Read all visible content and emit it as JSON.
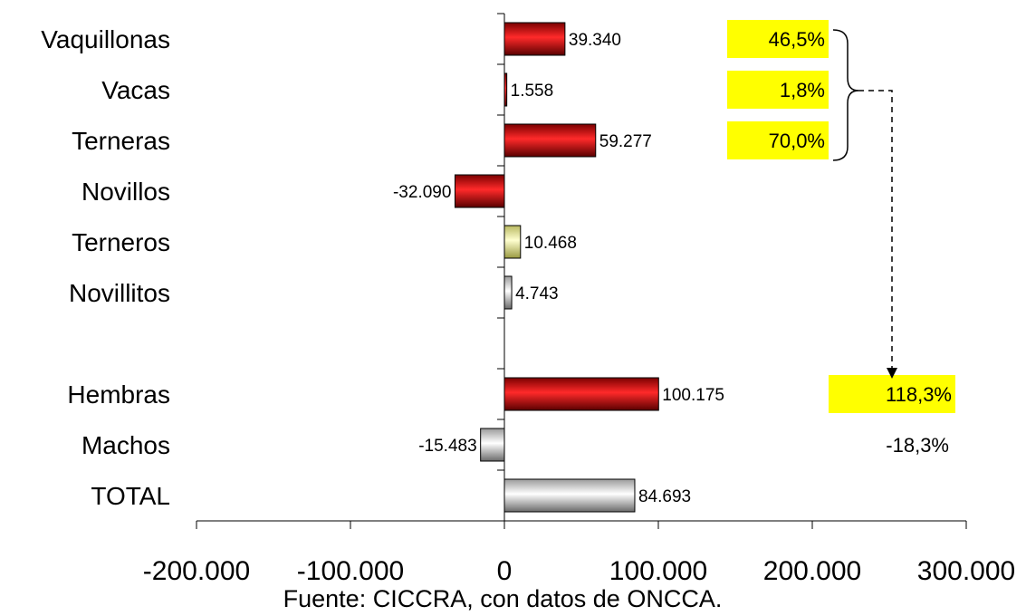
{
  "chart_data": {
    "type": "bar",
    "orientation": "horizontal",
    "categories": [
      "Vaquillonas",
      "Vacas",
      "Terneras",
      "Novillos",
      "Terneros",
      "Novillitos",
      "",
      "Hembras",
      "Machos",
      "TOTAL"
    ],
    "values": [
      39340,
      1558,
      59277,
      -32090,
      10468,
      4743,
      null,
      100175,
      -15483,
      84693
    ],
    "value_labels": [
      "39.340",
      "1.558",
      "59.277",
      "-32.090",
      "10.468",
      "4.743",
      "",
      "100.175",
      "-15.483",
      "84.693"
    ],
    "bar_colors": [
      "red",
      "red",
      "red",
      "red",
      "yellow",
      "gray",
      "",
      "red",
      "gray",
      "gray"
    ],
    "xlim": [
      -200000,
      300000
    ],
    "x_ticks": [
      -200000,
      -100000,
      0,
      100000,
      200000,
      300000
    ],
    "x_tick_labels": [
      "-200.000",
      "-100.000",
      "0",
      "100.000",
      "200.000",
      "300.000"
    ],
    "annotations": [
      {
        "text": "46,5%",
        "row": 0,
        "highlight": true
      },
      {
        "text": "1,8%",
        "row": 1,
        "highlight": true
      },
      {
        "text": "70,0%",
        "row": 2,
        "highlight": true
      },
      {
        "text": "118,3%",
        "row": 7,
        "highlight": true
      },
      {
        "text": "-18,3%",
        "row": 8,
        "highlight": false
      }
    ],
    "source": "Fuente: CICCRA, con datos de ONCCA.",
    "title": "",
    "xlabel": "",
    "ylabel": "",
    "grid": false,
    "legend": "none"
  },
  "colors": {
    "red": "#e00000",
    "yellow": "#f0f0a0",
    "gray": "#d8d8d8",
    "highlight": "#ffff00"
  }
}
